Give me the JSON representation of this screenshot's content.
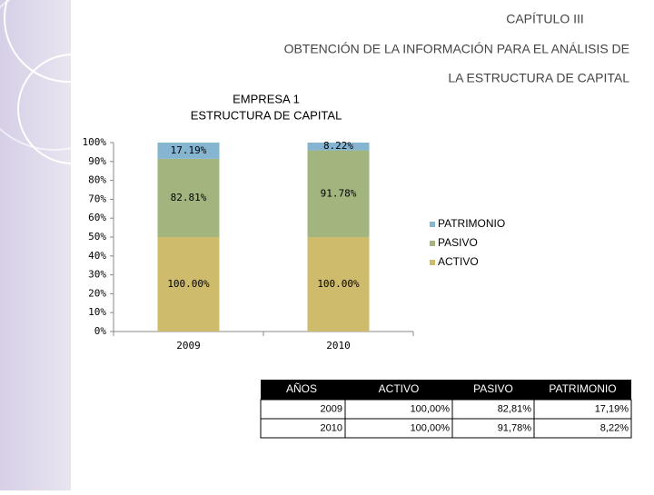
{
  "header": {
    "chapter": "CAPÍTULO III",
    "title_lines": [
      "OBTENCIÓN DE LA INFORMACIÓN PARA EL ANÁLISIS DE",
      "LA ESTRUCTURA DE CAPITAL"
    ]
  },
  "chart_data": {
    "type": "bar",
    "stacking": "percent",
    "title": [
      "EMPRESA 1",
      "ESTRUCTURA DE CAPITAL"
    ],
    "categories": [
      "2009",
      "2010"
    ],
    "series": [
      {
        "name": "ACTIVO",
        "color": "#cfbb6c",
        "values": [
          100.0,
          100.0
        ],
        "value_labels": [
          "100.00%",
          "100.00%"
        ]
      },
      {
        "name": "PASIVO",
        "color": "#a2b57e",
        "values": [
          82.81,
          91.78
        ],
        "value_labels": [
          "82.81%",
          "91.78%"
        ]
      },
      {
        "name": "PATRIMONIO",
        "color": "#86b5d2",
        "values": [
          17.19,
          8.22
        ],
        "value_labels": [
          "17.19%",
          "8.22%"
        ]
      }
    ],
    "ylim": [
      0,
      100
    ],
    "yticks": [
      {
        "value": 0,
        "label": "0%"
      },
      {
        "value": 10,
        "label": "10%"
      },
      {
        "value": 20,
        "label": "20%"
      },
      {
        "value": 30,
        "label": "30%"
      },
      {
        "value": 40,
        "label": "40%"
      },
      {
        "value": 50,
        "label": "50%"
      },
      {
        "value": 60,
        "label": "60%"
      },
      {
        "value": 70,
        "label": "70%"
      },
      {
        "value": 80,
        "label": "80%"
      },
      {
        "value": 90,
        "label": "90%"
      },
      {
        "value": 100,
        "label": "100%"
      }
    ],
    "legend": "right"
  },
  "table": {
    "header": [
      "AÑOS",
      "ACTIVO",
      "PASIVO",
      "PATRIMONIO"
    ],
    "rows": [
      [
        "2009",
        "100,00%",
        "82,81%",
        "17,19%"
      ],
      [
        "2010",
        "100,00%",
        "91,78%",
        "8,22%"
      ]
    ]
  }
}
